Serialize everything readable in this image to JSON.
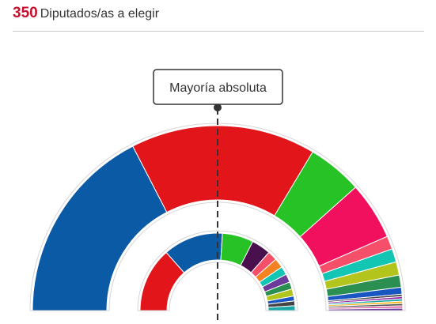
{
  "header": {
    "total": "350",
    "label": "Diputados/as a elegir"
  },
  "colors": {
    "outline": "#d6d6d6",
    "marker": "#333333"
  },
  "chart_data": {
    "type": "semicircle-donut",
    "title": "",
    "annotation": "Mayoría absoluta",
    "rings": [
      {
        "name": "",
        "segments": [
          {
            "value": 34.5,
            "color": "#0b5aa6"
          },
          {
            "value": 32.0,
            "color": "#e2151b"
          },
          {
            "value": 9.5,
            "color": "#27c226"
          },
          {
            "value": 10.0,
            "color": "#f0105e"
          },
          {
            "value": 2.3,
            "color": "#f54f6a"
          },
          {
            "value": 2.3,
            "color": "#13c6b3"
          },
          {
            "value": 2.3,
            "color": "#b3c51d"
          },
          {
            "value": 2.1,
            "color": "#2b8f52"
          },
          {
            "value": 1.2,
            "color": "#1a56c2"
          },
          {
            "value": 0.4,
            "color": "#444444"
          },
          {
            "value": 0.4,
            "color": "#9b1fa6"
          },
          {
            "value": 0.4,
            "color": "#18a6a6"
          },
          {
            "value": 0.4,
            "color": "#f2b41c"
          },
          {
            "value": 0.4,
            "color": "#555555"
          },
          {
            "value": 0.4,
            "color": "#e05fa0"
          },
          {
            "value": 0.4,
            "color": "#6b3a9b"
          }
        ]
      },
      {
        "name": "",
        "segments": [
          {
            "value": 27.0,
            "color": "#e2151b"
          },
          {
            "value": 25.0,
            "color": "#0b5aa6"
          },
          {
            "value": 13.0,
            "color": "#27c226"
          },
          {
            "value": 8.0,
            "color": "#4a0f4d"
          },
          {
            "value": 4.0,
            "color": "#f54f6a"
          },
          {
            "value": 4.0,
            "color": "#f58220"
          },
          {
            "value": 3.5,
            "color": "#13c6b3"
          },
          {
            "value": 3.5,
            "color": "#6b3a9b"
          },
          {
            "value": 3.0,
            "color": "#2b8f52"
          },
          {
            "value": 3.0,
            "color": "#b3c51d"
          },
          {
            "value": 2.0,
            "color": "#1a56c2"
          },
          {
            "value": 2.0,
            "color": "#444444"
          },
          {
            "value": 2.0,
            "color": "#18a6a6"
          }
        ]
      }
    ]
  }
}
